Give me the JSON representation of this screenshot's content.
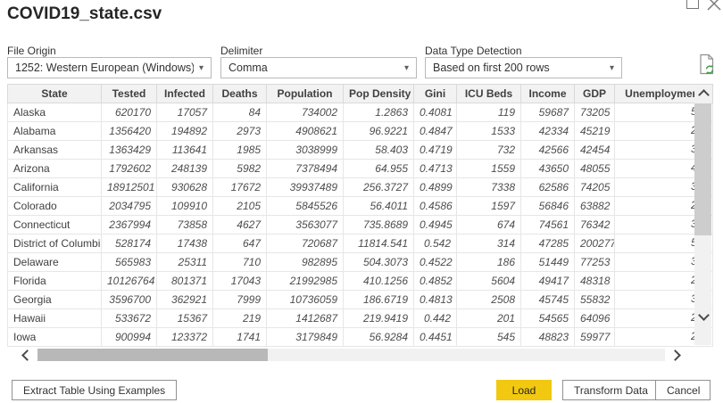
{
  "dialog": {
    "title": "COVID19_state.csv"
  },
  "controls": {
    "file_origin": {
      "label": "File Origin",
      "value": "1252: Western European (Windows)"
    },
    "delimiter": {
      "label": "Delimiter",
      "value": "Comma"
    },
    "data_type_detection": {
      "label": "Data Type Detection",
      "value": "Based on first 200 rows"
    }
  },
  "icons": {
    "refresh_preview": "file-refresh-icon",
    "maximize": "maximize-icon",
    "close": "close-icon"
  },
  "table": {
    "columns": [
      "State",
      "Tested",
      "Infected",
      "Deaths",
      "Population",
      "Pop Density",
      "Gini",
      "ICU Beds",
      "Income",
      "GDP",
      "Unemployment"
    ],
    "field_order": [
      "state",
      "tested",
      "infected",
      "deaths",
      "population",
      "pop_density",
      "gini",
      "icu_beds",
      "income",
      "gdp",
      "unemployment_fragment"
    ],
    "rows": [
      {
        "state": "Alaska",
        "tested": "620170",
        "infected": "17057",
        "deaths": "84",
        "population": "734002",
        "pop_density": "1.2863",
        "gini": "0.4081",
        "icu_beds": "119",
        "income": "59687",
        "gdp": "73205",
        "unemployment_fragment": "5"
      },
      {
        "state": "Alabama",
        "tested": "1356420",
        "infected": "194892",
        "deaths": "2973",
        "population": "4908621",
        "pop_density": "96.9221",
        "gini": "0.4847",
        "icu_beds": "1533",
        "income": "42334",
        "gdp": "45219",
        "unemployment_fragment": "2"
      },
      {
        "state": "Arkansas",
        "tested": "1363429",
        "infected": "113641",
        "deaths": "1985",
        "population": "3038999",
        "pop_density": "58.403",
        "gini": "0.4719",
        "icu_beds": "732",
        "income": "42566",
        "gdp": "42454",
        "unemployment_fragment": "3"
      },
      {
        "state": "Arizona",
        "tested": "1792602",
        "infected": "248139",
        "deaths": "5982",
        "population": "7378494",
        "pop_density": "64.955",
        "gini": "0.4713",
        "icu_beds": "1559",
        "income": "43650",
        "gdp": "48055",
        "unemployment_fragment": "4"
      },
      {
        "state": "California",
        "tested": "18912501",
        "infected": "930628",
        "deaths": "17672",
        "population": "39937489",
        "pop_density": "256.3727",
        "gini": "0.4899",
        "icu_beds": "7338",
        "income": "62586",
        "gdp": "74205",
        "unemployment_fragment": "3"
      },
      {
        "state": "Colorado",
        "tested": "2034795",
        "infected": "109910",
        "deaths": "2105",
        "population": "5845526",
        "pop_density": "56.4011",
        "gini": "0.4586",
        "icu_beds": "1597",
        "income": "56846",
        "gdp": "63882",
        "unemployment_fragment": "2"
      },
      {
        "state": "Connecticut",
        "tested": "2367994",
        "infected": "73858",
        "deaths": "4627",
        "population": "3563077",
        "pop_density": "735.8689",
        "gini": "0.4945",
        "icu_beds": "674",
        "income": "74561",
        "gdp": "76342",
        "unemployment_fragment": "3"
      },
      {
        "state": "District of Columbia",
        "tested": "528174",
        "infected": "17438",
        "deaths": "647",
        "population": "720687",
        "pop_density": "11814.541",
        "gini": "0.542",
        "icu_beds": "314",
        "income": "47285",
        "gdp": "200277",
        "unemployment_fragment": "5"
      },
      {
        "state": "Delaware",
        "tested": "565983",
        "infected": "25311",
        "deaths": "710",
        "population": "982895",
        "pop_density": "504.3073",
        "gini": "0.4522",
        "icu_beds": "186",
        "income": "51449",
        "gdp": "77253",
        "unemployment_fragment": "3"
      },
      {
        "state": "Florida",
        "tested": "10126764",
        "infected": "801371",
        "deaths": "17043",
        "population": "21992985",
        "pop_density": "410.1256",
        "gini": "0.4852",
        "icu_beds": "5604",
        "income": "49417",
        "gdp": "48318",
        "unemployment_fragment": "2"
      },
      {
        "state": "Georgia",
        "tested": "3596700",
        "infected": "362921",
        "deaths": "7999",
        "population": "10736059",
        "pop_density": "186.6719",
        "gini": "0.4813",
        "icu_beds": "2508",
        "income": "45745",
        "gdp": "55832",
        "unemployment_fragment": "3"
      },
      {
        "state": "Hawaii",
        "tested": "533672",
        "infected": "15367",
        "deaths": "219",
        "population": "1412687",
        "pop_density": "219.9419",
        "gini": "0.442",
        "icu_beds": "201",
        "income": "54565",
        "gdp": "64096",
        "unemployment_fragment": "2"
      },
      {
        "state": "Iowa",
        "tested": "900994",
        "infected": "123372",
        "deaths": "1741",
        "population": "3179849",
        "pop_density": "56.9284",
        "gini": "0.4451",
        "icu_beds": "545",
        "income": "48823",
        "gdp": "59977",
        "unemployment_fragment": "2"
      }
    ]
  },
  "footer": {
    "extract_button": "Extract Table Using Examples",
    "load_button": "Load",
    "transform_button": "Transform Data",
    "cancel_button": "Cancel"
  },
  "colors": {
    "accent_yellow": "#F2C811",
    "refresh_green": "#3f9c46"
  }
}
